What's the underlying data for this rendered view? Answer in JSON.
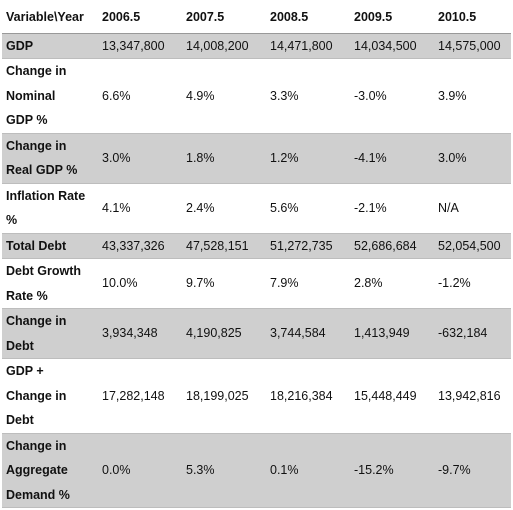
{
  "table": {
    "columns": [
      "Variable\\Year",
      "2006.5",
      "2007.5",
      "2008.5",
      "2009.5",
      "2010.5"
    ],
    "rows": [
      {
        "label": [
          "GDP"
        ],
        "values": [
          "13,347,800",
          "14,008,200",
          "14,471,800",
          "14,034,500",
          "14,575,000"
        ],
        "shaded": true
      },
      {
        "label": [
          "Change in",
          "Nominal",
          "GDP %"
        ],
        "values": [
          "6.6%",
          "4.9%",
          "3.3%",
          "-3.0%",
          "3.9%"
        ],
        "shaded": false
      },
      {
        "label": [
          "Change in",
          "Real GDP %"
        ],
        "values": [
          "3.0%",
          "1.8%",
          "1.2%",
          "-4.1%",
          "3.0%"
        ],
        "shaded": true
      },
      {
        "label": [
          "Inflation Rate",
          "%"
        ],
        "values": [
          "4.1%",
          "2.4%",
          "5.6%",
          "-2.1%",
          "N/A"
        ],
        "shaded": false
      },
      {
        "label": [
          "Total Debt"
        ],
        "values": [
          "43,337,326",
          "47,528,151",
          "51,272,735",
          "52,686,684",
          "52,054,500"
        ],
        "shaded": true
      },
      {
        "label": [
          "Debt Growth",
          "Rate %"
        ],
        "values": [
          "10.0%",
          "9.7%",
          "7.9%",
          "2.8%",
          "-1.2%"
        ],
        "shaded": false
      },
      {
        "label": [
          "Change in",
          "Debt"
        ],
        "values": [
          "3,934,348",
          "4,190,825",
          "3,744,584",
          "1,413,949",
          "-632,184"
        ],
        "shaded": true
      },
      {
        "label": [
          "GDP +",
          "Change in",
          "Debt"
        ],
        "values": [
          "17,282,148",
          "18,199,025",
          "18,216,384",
          "15,448,449",
          "13,942,816"
        ],
        "shaded": false
      },
      {
        "label": [
          "Change in",
          "Aggregate",
          "Demand %"
        ],
        "values": [
          "0.0%",
          "5.3%",
          "0.1%",
          "-15.2%",
          "-9.7%"
        ],
        "shaded": true
      }
    ]
  }
}
